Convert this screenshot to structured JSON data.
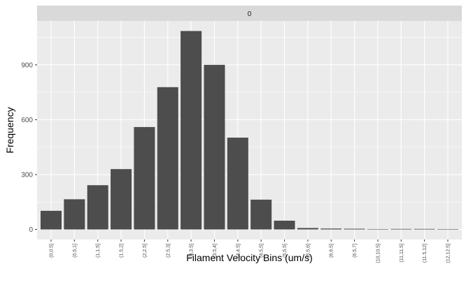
{
  "chart_data": {
    "type": "bar",
    "facet_label": "0",
    "xlabel": "Filament Velocity Bins (um/s)",
    "ylabel": "Frequency",
    "ylim": [
      -55,
      1140
    ],
    "yticks": [
      0,
      300,
      600,
      900
    ],
    "grid": true,
    "categories": [
      "(0,0.5]",
      "(0.5,1]",
      "(1,1.5]",
      "(1.5,2]",
      "(2,2.5]",
      "(2.5,3]",
      "(3,3.5]",
      "(3.5,4]",
      "(4,4.5]",
      "(4.5,5]",
      "(5,5.5]",
      "(5.5,6]",
      "(6,6.5]",
      "(6.5,7]",
      "(10,10.5]",
      "(11,11.5]",
      "(11.5,12]",
      "(12,12.5]"
    ],
    "values": [
      102,
      165,
      242,
      330,
      560,
      778,
      1085,
      900,
      502,
      163,
      48,
      8,
      5,
      4,
      2,
      3,
      3,
      1
    ],
    "colors": {
      "panel": "#ebebeb",
      "grid_major": "#ffffff",
      "strip": "#d9d9d9",
      "bar": "#4d4d4d",
      "tick_text": "#4d4d4d",
      "title_text": "#000000"
    }
  }
}
